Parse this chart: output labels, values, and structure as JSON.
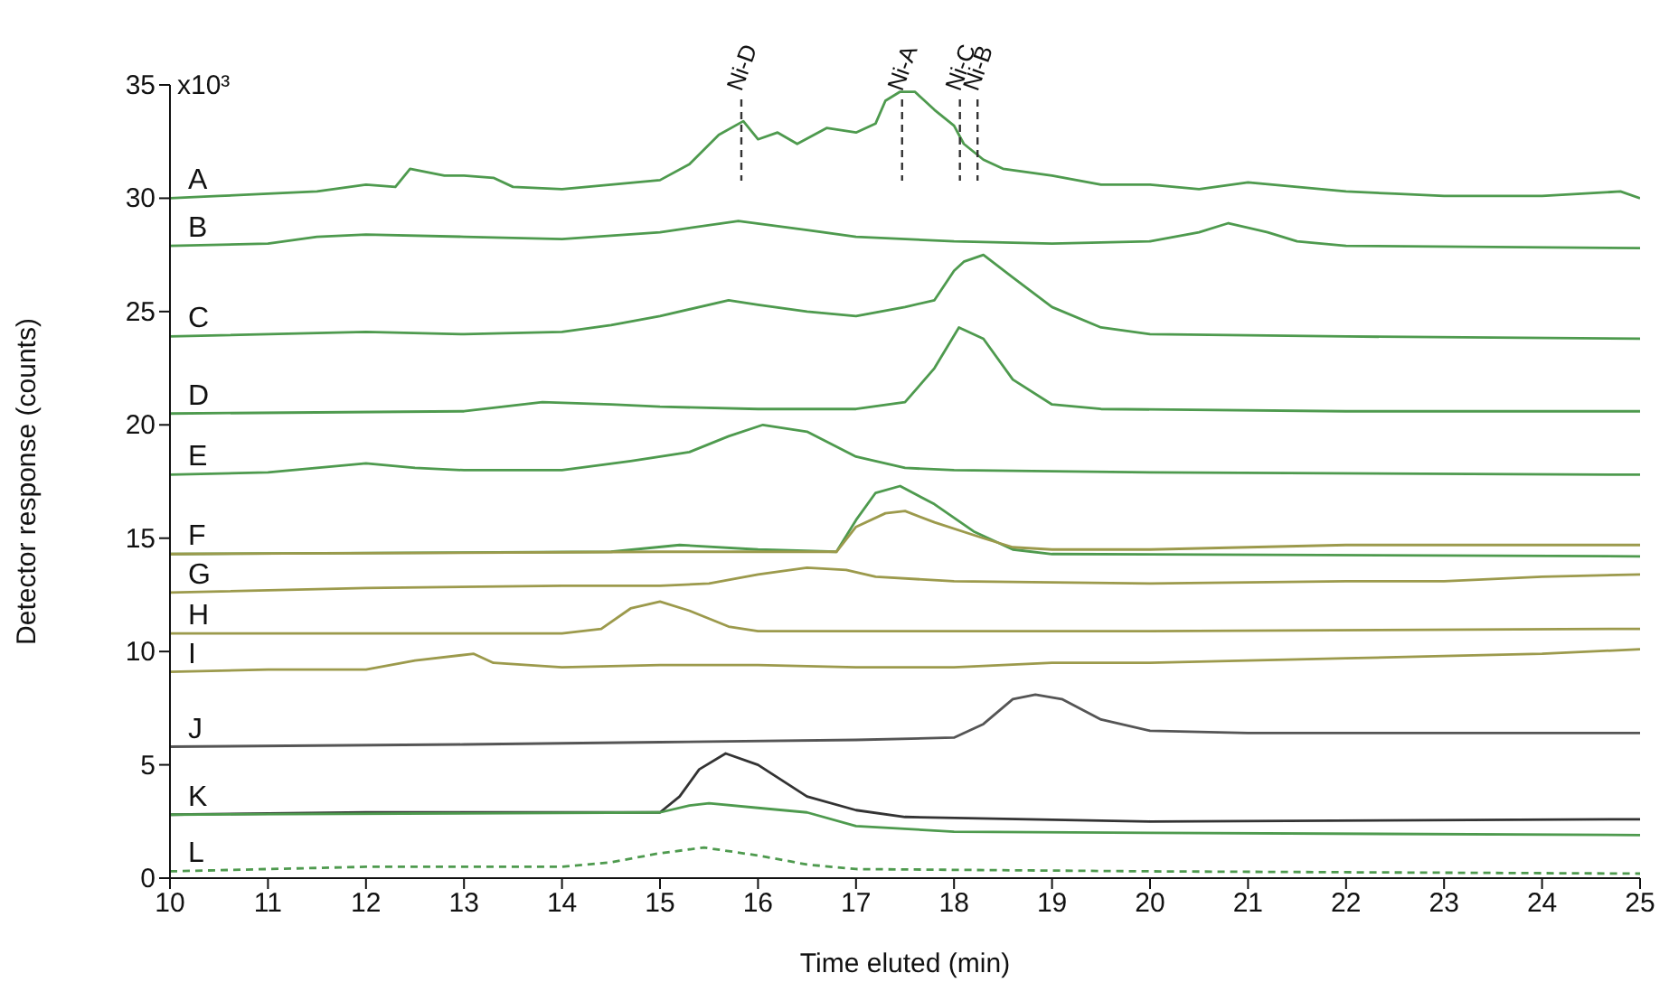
{
  "chart_data": {
    "type": "line",
    "xlabel": "Time eluted (min)",
    "ylabel": "Detector response (counts)",
    "xlim": [
      10,
      25
    ],
    "xticks": [
      10,
      11,
      12,
      13,
      14,
      15,
      16,
      17,
      18,
      19,
      20,
      21,
      22,
      23,
      24,
      25
    ],
    "ylim": [
      0,
      35
    ],
    "yticks": [
      0,
      5,
      10,
      15,
      20,
      25,
      30,
      35
    ],
    "annotations": [
      "x10³"
    ],
    "grid": false,
    "legend": false,
    "marker": "none",
    "ref_lines": [
      {
        "axis": "x",
        "value": 15.83,
        "label": "Ni-D",
        "line_style": "dashed",
        "color": "#333333"
      },
      {
        "axis": "x",
        "value": 17.47,
        "label": "Ni-A",
        "line_style": "dashed",
        "color": "#333333"
      },
      {
        "axis": "x",
        "value": 18.06,
        "label": "Ni-C",
        "line_style": "dashed",
        "color": "#333333"
      },
      {
        "axis": "x",
        "value": 18.24,
        "label": "Ni-B",
        "line_style": "dashed",
        "color": "#333333"
      }
    ],
    "series": [
      {
        "name": "A",
        "color": "#4e9a4e",
        "x": [
          10,
          10.5,
          11,
          11.5,
          12,
          12.3,
          12.45,
          12.8,
          13,
          13.3,
          13.5,
          14,
          14.5,
          15,
          15.3,
          15.6,
          15.85,
          16,
          16.2,
          16.4,
          16.7,
          17,
          17.2,
          17.3,
          17.45,
          17.6,
          17.8,
          18,
          18.1,
          18.3,
          18.5,
          19,
          19.5,
          20,
          20.5,
          21,
          21.5,
          22,
          22.5,
          23,
          24,
          24.8,
          25
        ],
        "values": [
          30.0,
          30.1,
          30.2,
          30.3,
          30.6,
          30.5,
          31.3,
          31.0,
          31.0,
          30.9,
          30.5,
          30.4,
          30.6,
          30.8,
          31.5,
          32.8,
          33.4,
          32.6,
          32.9,
          32.4,
          33.1,
          32.9,
          33.3,
          34.3,
          34.7,
          34.7,
          33.9,
          33.2,
          32.4,
          31.7,
          31.3,
          31.0,
          30.6,
          30.6,
          30.4,
          30.7,
          30.5,
          30.3,
          30.2,
          30.1,
          30.1,
          30.3,
          30.0
        ]
      },
      {
        "name": "B",
        "color": "#4e9a4e",
        "x": [
          10,
          11,
          11.5,
          12,
          13,
          14,
          15,
          15.8,
          16.5,
          17,
          18,
          19,
          20,
          20.5,
          20.8,
          21.2,
          21.5,
          22,
          25
        ],
        "values": [
          27.9,
          28.0,
          28.3,
          28.4,
          28.3,
          28.2,
          28.5,
          29.0,
          28.6,
          28.3,
          28.1,
          28.0,
          28.1,
          28.5,
          28.9,
          28.5,
          28.1,
          27.9,
          27.8
        ]
      },
      {
        "name": "C",
        "color": "#4e9a4e",
        "x": [
          10,
          12,
          13,
          14,
          14.5,
          15,
          15.7,
          16,
          16.5,
          17,
          17.5,
          17.8,
          18,
          18.1,
          18.3,
          18.6,
          19,
          19.5,
          20,
          22,
          25
        ],
        "values": [
          23.9,
          24.1,
          24.0,
          24.1,
          24.4,
          24.8,
          25.5,
          25.3,
          25.0,
          24.8,
          25.2,
          25.5,
          26.8,
          27.2,
          27.5,
          26.5,
          25.2,
          24.3,
          24.0,
          23.9,
          23.8
        ]
      },
      {
        "name": "D",
        "color": "#4e9a4e",
        "x": [
          10,
          13,
          13.8,
          14.5,
          15,
          16,
          17,
          17.5,
          17.8,
          18.05,
          18.3,
          18.6,
          19,
          19.5,
          22,
          25
        ],
        "values": [
          20.5,
          20.6,
          21.0,
          20.9,
          20.8,
          20.7,
          20.7,
          21.0,
          22.5,
          24.3,
          23.8,
          22.0,
          20.9,
          20.7,
          20.6,
          20.6
        ]
      },
      {
        "name": "E",
        "color": "#4e9a4e",
        "x": [
          10,
          11,
          12,
          12.5,
          13,
          14,
          14.7,
          15.3,
          15.7,
          16.05,
          16.5,
          17,
          17.5,
          18,
          20,
          25
        ],
        "values": [
          17.8,
          17.9,
          18.3,
          18.1,
          18.0,
          18.0,
          18.4,
          18.8,
          19.5,
          20.0,
          19.7,
          18.6,
          18.1,
          18.0,
          17.9,
          17.8
        ]
      },
      {
        "name": "F",
        "color": "#4e9a4e",
        "x": [
          10,
          14.5,
          15.2,
          16,
          16.8,
          17,
          17.2,
          17.45,
          17.8,
          18.2,
          18.6,
          19,
          25
        ],
        "values": [
          14.3,
          14.4,
          14.7,
          14.5,
          14.4,
          15.8,
          17.0,
          17.3,
          16.5,
          15.3,
          14.5,
          14.3,
          14.2
        ]
      },
      {
        "color": "#9c9a4c",
        "x": [
          10,
          15,
          16,
          16.8,
          17,
          17.3,
          17.5,
          17.8,
          18.3,
          18.6,
          19,
          20,
          21,
          22,
          24,
          25
        ],
        "values": [
          14.3,
          14.4,
          14.4,
          14.4,
          15.5,
          16.1,
          16.2,
          15.7,
          15.0,
          14.6,
          14.5,
          14.5,
          14.6,
          14.7,
          14.7,
          14.7
        ]
      },
      {
        "name": "G",
        "color": "#9c9a4c",
        "x": [
          10,
          12,
          14,
          15,
          15.5,
          16,
          16.5,
          16.9,
          17.2,
          18,
          20,
          22,
          23,
          24,
          25
        ],
        "values": [
          12.6,
          12.8,
          12.9,
          12.9,
          13.0,
          13.4,
          13.7,
          13.6,
          13.3,
          13.1,
          13.0,
          13.1,
          13.1,
          13.3,
          13.4
        ]
      },
      {
        "name": "H",
        "color": "#9c9a4c",
        "x": [
          10,
          14,
          14.4,
          14.7,
          15,
          15.3,
          15.7,
          16,
          20,
          25
        ],
        "values": [
          10.8,
          10.8,
          11.0,
          11.9,
          12.2,
          11.8,
          11.1,
          10.9,
          10.9,
          11.0
        ]
      },
      {
        "name": "I",
        "color": "#9c9a4c",
        "x": [
          10,
          11,
          12,
          12.5,
          13.1,
          13.3,
          14,
          15,
          16,
          17,
          18,
          19,
          20,
          21,
          22,
          23,
          24,
          25
        ],
        "values": [
          9.1,
          9.2,
          9.2,
          9.6,
          9.9,
          9.5,
          9.3,
          9.4,
          9.4,
          9.3,
          9.3,
          9.5,
          9.5,
          9.6,
          9.7,
          9.8,
          9.9,
          10.1
        ]
      },
      {
        "name": "J",
        "color": "#555555",
        "x": [
          10,
          13,
          15,
          17,
          18,
          18.3,
          18.6,
          18.83,
          19.1,
          19.5,
          20,
          21,
          25
        ],
        "values": [
          5.8,
          5.9,
          6.0,
          6.1,
          6.2,
          6.8,
          7.9,
          8.1,
          7.9,
          7.0,
          6.5,
          6.4,
          6.4
        ]
      },
      {
        "name": "K",
        "color": "#333333",
        "x": [
          10,
          12,
          14,
          15,
          15.2,
          15.4,
          15.67,
          16,
          16.5,
          17,
          17.5,
          20,
          25
        ],
        "values": [
          2.8,
          2.9,
          2.9,
          2.9,
          3.6,
          4.8,
          5.5,
          5.0,
          3.6,
          3.0,
          2.7,
          2.5,
          2.6
        ]
      },
      {
        "color": "#4e9a4e",
        "x": [
          10,
          15,
          15.3,
          15.5,
          16,
          16.5,
          17,
          18,
          20,
          25
        ],
        "values": [
          2.8,
          2.9,
          3.2,
          3.3,
          3.1,
          2.9,
          2.3,
          2.05,
          2.0,
          1.9
        ]
      },
      {
        "name": "L",
        "color": "#4e9a4e",
        "line_style": "dashed",
        "x": [
          10,
          12,
          13,
          14,
          14.5,
          15,
          15.45,
          16,
          16.5,
          17,
          20,
          25
        ],
        "values": [
          0.3,
          0.5,
          0.5,
          0.5,
          0.7,
          1.1,
          1.35,
          1.0,
          0.6,
          0.4,
          0.3,
          0.2
        ]
      }
    ]
  }
}
